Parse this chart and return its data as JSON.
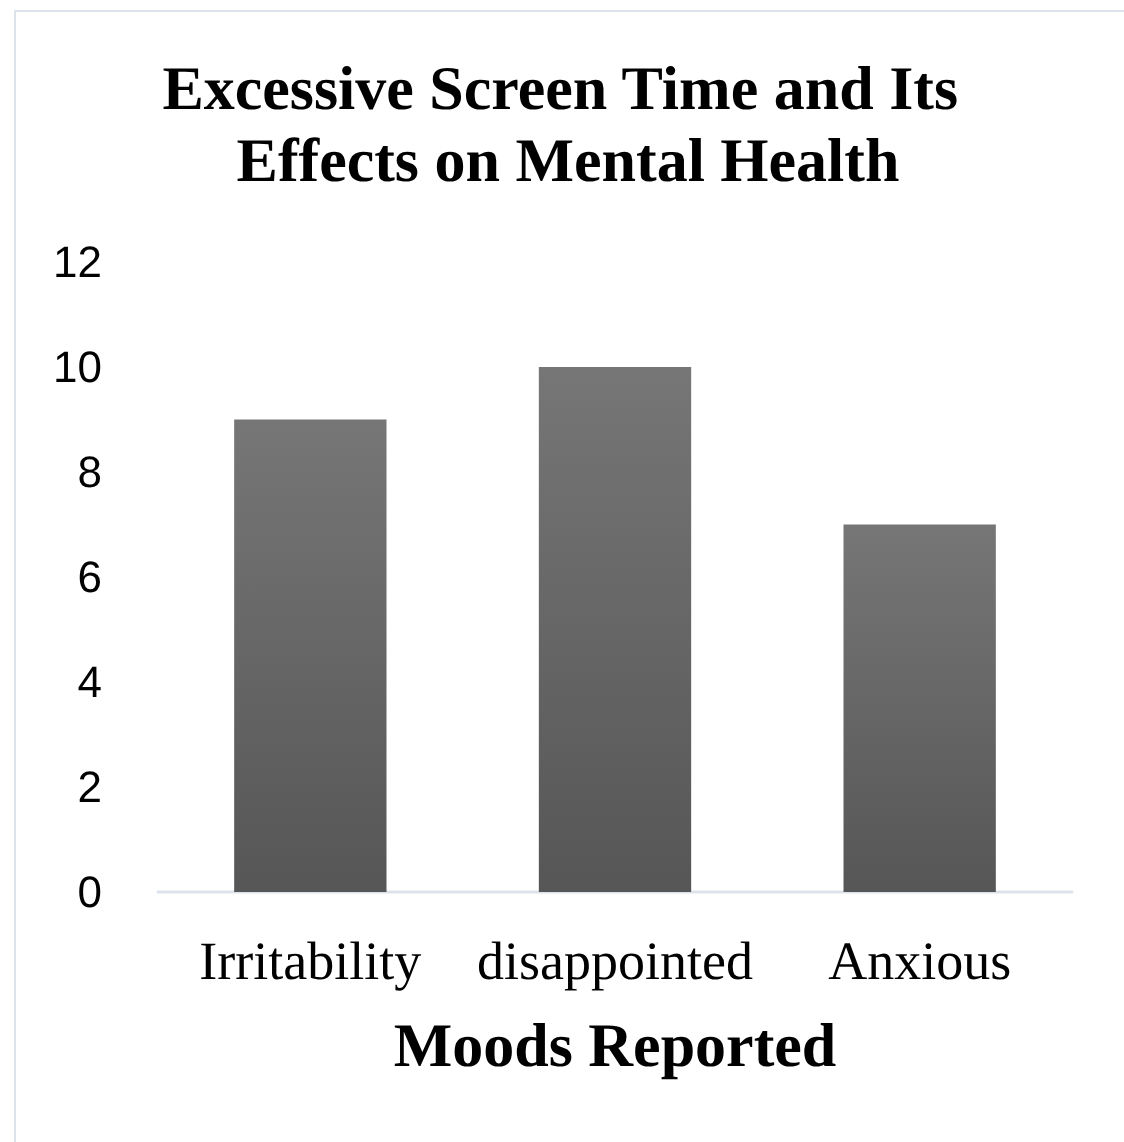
{
  "chart_data": {
    "type": "bar",
    "title": "Excessive Screen Time and Its Effects on Mental Health",
    "xlabel": "Moods Reported",
    "categories": [
      "Irritability",
      "disappointed",
      "Anxious"
    ],
    "values": [
      9,
      10,
      7
    ],
    "color": "#666666",
    "ylim": [
      0,
      12
    ],
    "yticks": [
      0,
      2,
      4,
      6,
      8,
      10,
      12
    ]
  }
}
